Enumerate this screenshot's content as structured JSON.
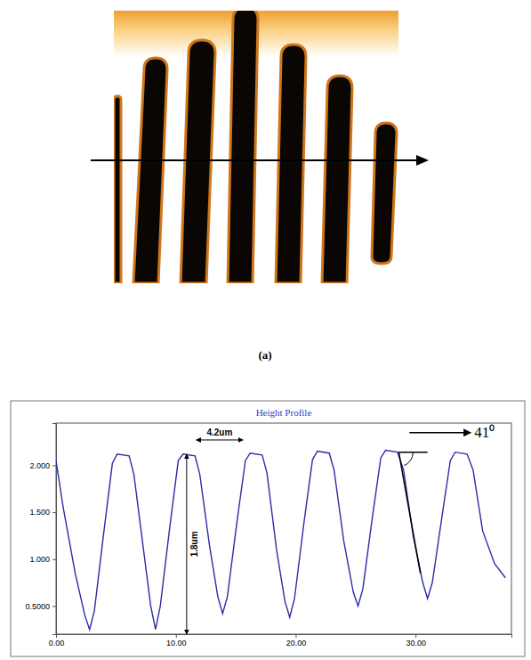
{
  "figure": {
    "panel_label": "(a)"
  },
  "chart_data": {
    "type": "line",
    "title": "Height Profile",
    "x": [
      0.0,
      0.6,
      1.6,
      2.4,
      2.8,
      3.2,
      4.0,
      4.7,
      5.1,
      6.1,
      6.5,
      7.3,
      7.9,
      8.3,
      8.7,
      9.5,
      10.2,
      10.6,
      11.6,
      12.0,
      12.8,
      13.5,
      13.9,
      14.3,
      15.1,
      15.8,
      16.2,
      17.2,
      17.6,
      18.4,
      19.1,
      19.5,
      19.9,
      20.7,
      21.4,
      21.8,
      22.8,
      23.2,
      24.0,
      24.8,
      25.2,
      25.6,
      26.4,
      27.1,
      27.5,
      28.5,
      29.0,
      29.8,
      30.6,
      31.0,
      31.4,
      32.2,
      32.9,
      33.3,
      34.3,
      34.8,
      35.6,
      36.6,
      37.5
    ],
    "values": [
      2.05,
      1.55,
      0.85,
      0.4,
      0.25,
      0.45,
      1.3,
      2.02,
      2.12,
      2.1,
      1.9,
      1.1,
      0.5,
      0.25,
      0.5,
      1.35,
      2.05,
      2.12,
      2.1,
      1.9,
      1.15,
      0.6,
      0.42,
      0.6,
      1.4,
      2.05,
      2.13,
      2.11,
      1.92,
      1.1,
      0.55,
      0.38,
      0.58,
      1.4,
      2.06,
      2.15,
      2.13,
      1.95,
      1.2,
      0.65,
      0.5,
      0.68,
      1.45,
      2.08,
      2.16,
      2.14,
      1.95,
      1.25,
      0.75,
      0.58,
      0.75,
      1.45,
      2.05,
      2.14,
      2.12,
      1.95,
      1.3,
      0.95,
      0.8
    ],
    "color": "#2c2ca8",
    "xlim": [
      0,
      38
    ],
    "xticks": [
      {
        "value": 0,
        "label": "0.00"
      },
      {
        "value": 10,
        "label": "10.00"
      },
      {
        "value": 20,
        "label": "20.00"
      },
      {
        "value": 30,
        "label": "30.00"
      }
    ],
    "ylim": [
      0.2,
      2.45
    ],
    "yticks": [
      {
        "value": 0.5,
        "label": "0.5000"
      },
      {
        "value": 1,
        "label": "1.000"
      },
      {
        "value": 1.5,
        "label": "1.500"
      },
      {
        "value": 2,
        "label": "2.000"
      }
    ],
    "grid": false,
    "annotations": [
      {
        "text": "4.2um"
      },
      {
        "text": "1.8um"
      },
      {
        "text": "41⁰"
      }
    ]
  }
}
